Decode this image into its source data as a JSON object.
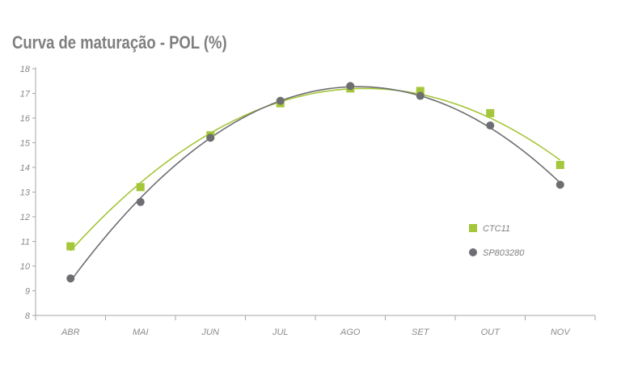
{
  "chart_data": {
    "type": "scatter",
    "title": "Curva de maturação - POL (%)",
    "xlabel": "",
    "ylabel": "",
    "categories": [
      "ABR",
      "MAI",
      "JUN",
      "JUL",
      "AGO",
      "SET",
      "OUT",
      "NOV"
    ],
    "ylim": [
      8,
      18
    ],
    "yticks": [
      8,
      9,
      10,
      11,
      12,
      13,
      14,
      15,
      16,
      17,
      18
    ],
    "grid": false,
    "legend_position": "right",
    "trendline": "smooth curve through each series",
    "series": [
      {
        "name": "CTC11",
        "marker": "square",
        "color": "#a4c639",
        "values": [
          10.8,
          13.2,
          15.3,
          16.6,
          17.2,
          17.1,
          16.2,
          14.1
        ]
      },
      {
        "name": "SP803280",
        "marker": "circle",
        "color": "#6d6e71",
        "values": [
          9.5,
          12.6,
          15.2,
          16.7,
          17.3,
          16.9,
          15.7,
          13.3
        ]
      }
    ]
  }
}
